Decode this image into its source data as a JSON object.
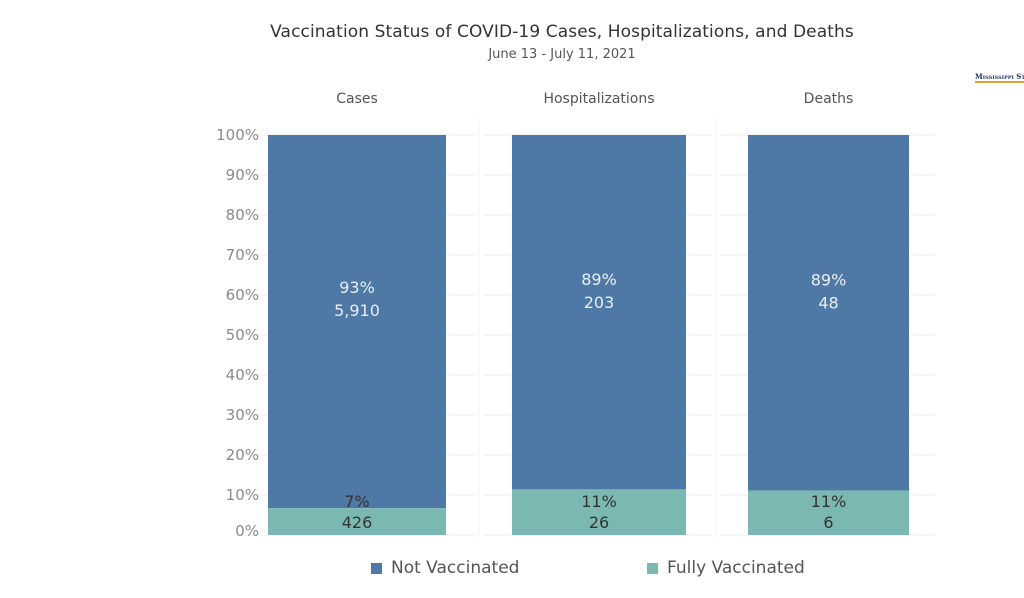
{
  "title": "Vaccination Status of COVID-19 Cases, Hospitalizations, and Deaths",
  "subtitle": "June 13 - July 11, 2021",
  "logo_text": "Mississippi St",
  "colors": {
    "not_vaccinated": "#4e79a7",
    "fully_vaccinated": "#7ab8b1",
    "gridline": "#ececec",
    "axis_text": "#8a8a8a",
    "header_text": "#555555",
    "label_light": "#e9eef5",
    "label_dark": "#333333"
  },
  "legend": [
    {
      "name": "Not Vaccinated",
      "color": "#4e79a7"
    },
    {
      "name": "Fully Vaccinated",
      "color": "#7ab8b1"
    }
  ],
  "chart_data": {
    "type": "bar",
    "stacked": true,
    "categories": [
      "Cases",
      "Hospitalizations",
      "Deaths"
    ],
    "ylim": [
      0,
      100
    ],
    "ytick_labels": [
      "0%",
      "10%",
      "20%",
      "30%",
      "40%",
      "50%",
      "60%",
      "70%",
      "80%",
      "90%",
      "100%"
    ],
    "grid": true,
    "legend_position": "bottom",
    "series": [
      {
        "name": "Fully Vaccinated",
        "percent_labels": [
          "7%",
          "11%",
          "11%"
        ],
        "count_labels": [
          "426",
          "26",
          "6"
        ],
        "values": [
          6.7,
          11.4,
          11.1
        ]
      },
      {
        "name": "Not Vaccinated",
        "percent_labels": [
          "93%",
          "89%",
          "89%"
        ],
        "count_labels": [
          "5,910",
          "203",
          "48"
        ],
        "values": [
          93.3,
          88.6,
          88.9
        ]
      }
    ]
  }
}
